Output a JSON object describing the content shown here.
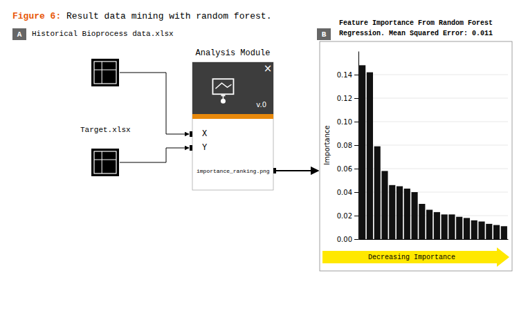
{
  "chart_data": {
    "type": "bar",
    "title": "Feature Importance From Random Forest",
    "subtitle": "Regression. Mean Squared Error: 0.011",
    "y_label": "Importance",
    "annotations": [
      "Figure 6:",
      "Result data mining with random forest.",
      "A",
      "Historical Bioprocess data.xlsx",
      "Target.xlsx",
      "B",
      "Analysis Module",
      "×",
      "v.0",
      "X",
      "Y",
      "importance_ranking.png",
      "Decreasing Importance"
    ],
    "categories": [
      null,
      null,
      null,
      null,
      null,
      null,
      null,
      null,
      null,
      null,
      null,
      null,
      null,
      null,
      null,
      null,
      null,
      null,
      null,
      null
    ],
    "values": [
      0.148,
      0.142,
      0.079,
      0.058,
      0.046,
      0.045,
      0.043,
      0.04,
      0.03,
      0.025,
      0.023,
      0.021,
      0.021,
      0.019,
      0.018,
      0.016,
      0.015,
      0.013,
      0.012,
      0.011
    ],
    "color": "#111111",
    "ylim": [
      0,
      0.16
    ],
    "yticks": [
      {
        "value": 0,
        "label": "0.00"
      },
      0.02,
      0.04,
      0.06,
      0.08,
      {
        "value": 0.1,
        "label": "0.10"
      },
      0.12,
      0.14
    ],
    "grid": true,
    "tick_labels": "y"
  }
}
